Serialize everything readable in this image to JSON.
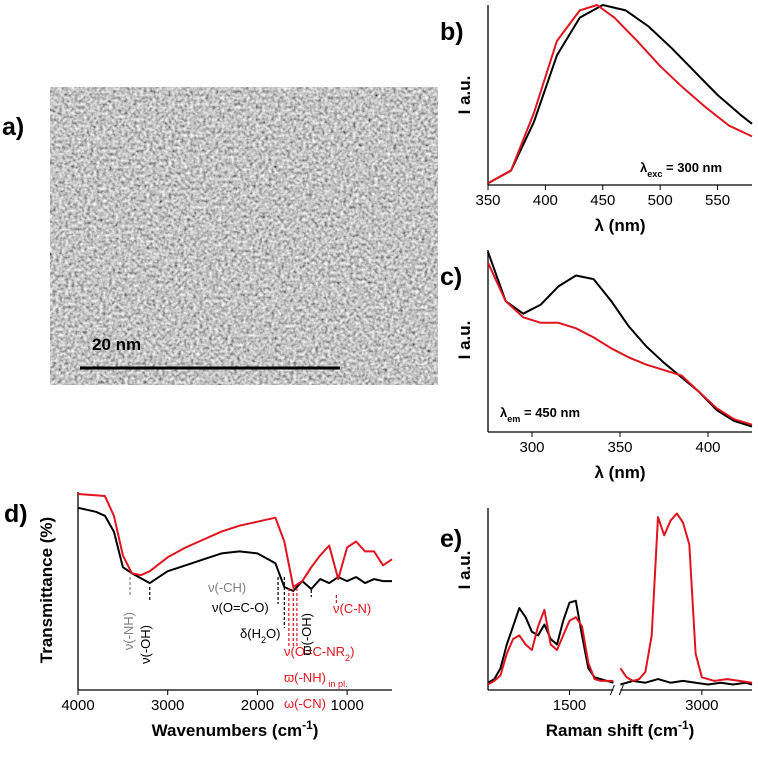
{
  "chart_data": [
    {
      "type": "image",
      "panel_label": "a)",
      "scale_bar_label": "20 nm"
    },
    {
      "type": "line",
      "panel_label": "b)",
      "ylabel": "I a.u.",
      "xlabel": [
        {
          "text": "λ (nm)"
        }
      ],
      "annotation": [
        {
          "text": "λ"
        },
        {
          "text": "exc",
          "sub": true
        },
        {
          "text": " = 300 nm"
        }
      ],
      "xlim": [
        350,
        580
      ],
      "ylim": [
        0,
        1
      ],
      "xticks": [
        350,
        400,
        450,
        500,
        550
      ],
      "series": [
        {
          "color": "#000000",
          "x": [
            350,
            370,
            390,
            410,
            430,
            450,
            470,
            490,
            510,
            530,
            550,
            570,
            580
          ],
          "values": [
            0.01,
            0.08,
            0.35,
            0.72,
            0.93,
            1.0,
            0.97,
            0.88,
            0.76,
            0.63,
            0.5,
            0.39,
            0.34
          ]
        },
        {
          "color": "#e0141e",
          "x": [
            350,
            370,
            390,
            410,
            430,
            445,
            460,
            480,
            500,
            520,
            540,
            560,
            580
          ],
          "values": [
            0.01,
            0.08,
            0.4,
            0.8,
            0.97,
            1.0,
            0.93,
            0.8,
            0.66,
            0.54,
            0.43,
            0.33,
            0.27
          ]
        }
      ]
    },
    {
      "type": "line",
      "panel_label": "c)",
      "ylabel": "I a.u.",
      "xlabel": [
        {
          "text": "λ (nm)"
        }
      ],
      "annotation": [
        {
          "text": "λ"
        },
        {
          "text": "em",
          "sub": true
        },
        {
          "text": " = 450 nm"
        }
      ],
      "xlim": [
        275,
        425
      ],
      "ylim": [
        0,
        1
      ],
      "xticks": [
        300,
        350,
        400
      ],
      "series": [
        {
          "color": "#000000",
          "x": [
            275,
            285,
            295,
            305,
            315,
            325,
            335,
            345,
            355,
            365,
            375,
            385,
            395,
            405,
            415,
            425
          ],
          "values": [
            0.99,
            0.72,
            0.65,
            0.7,
            0.8,
            0.86,
            0.84,
            0.72,
            0.58,
            0.47,
            0.38,
            0.3,
            0.22,
            0.12,
            0.06,
            0.03
          ]
        },
        {
          "color": "#e0141e",
          "x": [
            275,
            285,
            295,
            305,
            315,
            325,
            335,
            345,
            355,
            365,
            375,
            385,
            395,
            405,
            415,
            425
          ],
          "values": [
            0.93,
            0.72,
            0.63,
            0.6,
            0.6,
            0.57,
            0.52,
            0.46,
            0.41,
            0.37,
            0.34,
            0.31,
            0.22,
            0.13,
            0.07,
            0.04
          ]
        }
      ]
    },
    {
      "type": "line",
      "panel_label": "d)",
      "ylabel": "Transmittance (%)",
      "xlabel": [
        {
          "text": "Wavenumbers (cm"
        },
        {
          "text": "-1",
          "sup": true
        },
        {
          "text": ")"
        }
      ],
      "xlim": [
        4000,
        500
      ],
      "ylim": [
        0,
        100
      ],
      "xticks": [
        4000,
        3000,
        2000,
        1000
      ],
      "series": [
        {
          "color": "#000000",
          "x": [
            4000,
            3800,
            3700,
            3600,
            3500,
            3400,
            3200,
            3000,
            2800,
            2600,
            2400,
            2200,
            2000,
            1800,
            1700,
            1600,
            1500,
            1400,
            1300,
            1200,
            1100,
            1000,
            900,
            800,
            700,
            600,
            500
          ],
          "values": [
            92,
            90,
            88,
            80,
            62,
            59,
            54,
            60,
            63,
            66,
            69,
            70,
            69,
            64,
            52,
            50,
            55,
            51,
            56,
            54,
            57,
            55,
            57,
            54,
            56,
            55,
            55
          ]
        },
        {
          "color": "#e0141e",
          "x": [
            4000,
            3700,
            3600,
            3500,
            3400,
            3300,
            3200,
            3000,
            2800,
            2600,
            2400,
            2200,
            2000,
            1800,
            1700,
            1600,
            1500,
            1400,
            1300,
            1200,
            1100,
            1000,
            900,
            800,
            700,
            600,
            500
          ],
          "values": [
            99,
            98,
            88,
            68,
            59,
            58,
            60,
            67,
            72,
            76,
            80,
            83,
            85,
            87,
            75,
            52,
            55,
            62,
            68,
            73,
            56,
            72,
            75,
            70,
            70,
            63,
            66
          ]
        }
      ],
      "annotations": [
        {
          "parts": [
            {
              "text": "ν(-NH)"
            }
          ],
          "color": "#808080",
          "x": 3420
        },
        {
          "parts": [
            {
              "text": "ν(-OH)"
            }
          ],
          "color": "#000000",
          "x": 3200
        },
        {
          "parts": [
            {
              "text": "ν(-CH)"
            }
          ],
          "color": "#808080"
        },
        {
          "parts": [
            {
              "text": "ν(O=C-O)"
            }
          ],
          "color": "#000000",
          "x": 1770
        },
        {
          "parts": [
            {
              "text": "δ(H"
            },
            {
              "text": "2",
              "sub": true
            },
            {
              "text": "O)"
            }
          ],
          "color": "#000000",
          "x": 1700
        },
        {
          "parts": [
            {
              "text": "ν(O=C-NR"
            },
            {
              "text": "2",
              "sub": true
            },
            {
              "text": ")"
            }
          ],
          "color": "#e0141e",
          "x": 1650
        },
        {
          "parts": [
            {
              "text": "ϖ(-NH)"
            },
            {
              "text": " in pl.",
              "sub": true
            }
          ],
          "color": "#e0141e",
          "x": 1600
        },
        {
          "parts": [
            {
              "text": "ω(-CN)"
            }
          ],
          "color": "#e0141e",
          "x": 1560
        },
        {
          "parts": [
            {
              "text": "ϖ(-OH)"
            }
          ],
          "color": "#000000",
          "x": 1400
        },
        {
          "parts": [
            {
              "text": "ν(C-N)"
            }
          ],
          "color": "#e0141e",
          "x": 1120
        }
      ]
    },
    {
      "type": "line",
      "panel_label": "e)",
      "ylabel": "I a.u.",
      "xlabel": [
        {
          "text": "Raman shift (cm"
        },
        {
          "text": "-1",
          "sup": true
        },
        {
          "text": ")"
        }
      ],
      "xlim": [
        850,
        3400
      ],
      "xbreak": [
        1850,
        2350
      ],
      "ylim": [
        0,
        1
      ],
      "xticks": [
        1500,
        3000
      ],
      "series": [
        {
          "color": "#000000",
          "x": [
            850,
            900,
            950,
            1000,
            1050,
            1100,
            1150,
            1200,
            1250,
            1300,
            1350,
            1400,
            1450,
            1500,
            1550,
            1600,
            1650,
            1700,
            1750,
            1800,
            1850,
            2100,
            2350,
            2450,
            2550,
            2650,
            2750,
            2850,
            2950,
            3050,
            3150,
            3250,
            3350,
            3400
          ],
          "values": [
            0.04,
            0.06,
            0.12,
            0.25,
            0.35,
            0.45,
            0.4,
            0.32,
            0.3,
            0.36,
            0.28,
            0.25,
            0.38,
            0.48,
            0.49,
            0.3,
            0.12,
            0.07,
            0.06,
            0.05,
            0.04,
            null,
            0.03,
            0.05,
            0.04,
            0.06,
            0.04,
            0.05,
            0.04,
            0.03,
            0.04,
            0.03,
            0.04,
            0.03
          ]
        },
        {
          "color": "#e0141e",
          "x": [
            850,
            900,
            950,
            1000,
            1050,
            1100,
            1150,
            1200,
            1250,
            1300,
            1350,
            1400,
            1450,
            1500,
            1550,
            1600,
            1650,
            1700,
            1750,
            1800,
            1850,
            2100,
            2350,
            2400,
            2450,
            2500,
            2550,
            2600,
            2650,
            2700,
            2750,
            2800,
            2850,
            2900,
            2950,
            3000,
            3100,
            3200,
            3300,
            3400
          ],
          "values": [
            0.03,
            0.05,
            0.08,
            0.2,
            0.28,
            0.3,
            0.25,
            0.22,
            0.35,
            0.44,
            0.25,
            0.22,
            0.3,
            0.38,
            0.4,
            0.35,
            0.15,
            0.06,
            0.05,
            0.05,
            0.05,
            null,
            0.12,
            0.07,
            0.05,
            0.06,
            0.1,
            0.3,
            0.95,
            0.85,
            0.93,
            0.97,
            0.92,
            0.8,
            0.2,
            0.07,
            0.05,
            0.06,
            0.05,
            0.04
          ]
        }
      ]
    }
  ]
}
